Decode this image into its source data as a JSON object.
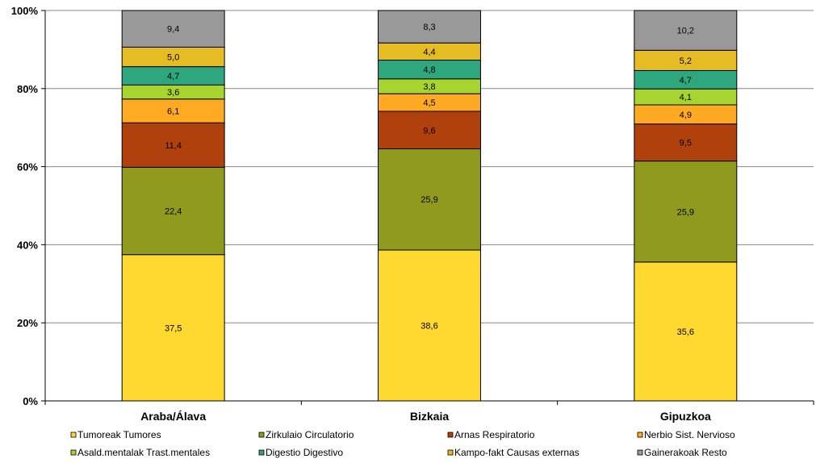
{
  "chart_data": {
    "type": "bar",
    "stacked": true,
    "normalized": true,
    "categories": [
      "Araba/Álava",
      "Bizkaia",
      "Gipuzkoa"
    ],
    "series": [
      {
        "name": "Tumoreak Tumores",
        "color": "#FFD92F",
        "values": [
          37.5,
          38.6,
          35.6
        ]
      },
      {
        "name": "Zirkulaio Circulatorio",
        "color": "#8F9A1E",
        "values": [
          22.4,
          25.9,
          25.9
        ]
      },
      {
        "name": "Arnas Respiratorio",
        "color": "#B0410C",
        "values": [
          11.4,
          9.6,
          9.5
        ]
      },
      {
        "name": "Nerbio Sist. Nervioso",
        "color": "#FFAA22",
        "values": [
          6.1,
          4.5,
          4.9
        ]
      },
      {
        "name": "Asald.mentalak Trast.mentales",
        "color": "#A8D430",
        "values": [
          3.6,
          3.8,
          4.1
        ]
      },
      {
        "name": "Digestio Digestivo",
        "color": "#2EA67E",
        "values": [
          4.7,
          4.8,
          4.7
        ]
      },
      {
        "name": "Kampo-fakt Causas externas",
        "color": "#E6BC24",
        "values": [
          5.0,
          4.4,
          5.2
        ]
      },
      {
        "name": "Gainerakoak Resto",
        "color": "#999999",
        "values": [
          9.4,
          8.3,
          10.2
        ]
      }
    ],
    "y_ticks": [
      "0%",
      "20%",
      "40%",
      "60%",
      "80%",
      "100%"
    ],
    "ylim": [
      0,
      100
    ],
    "grid": true,
    "legend_position": "bottom"
  }
}
